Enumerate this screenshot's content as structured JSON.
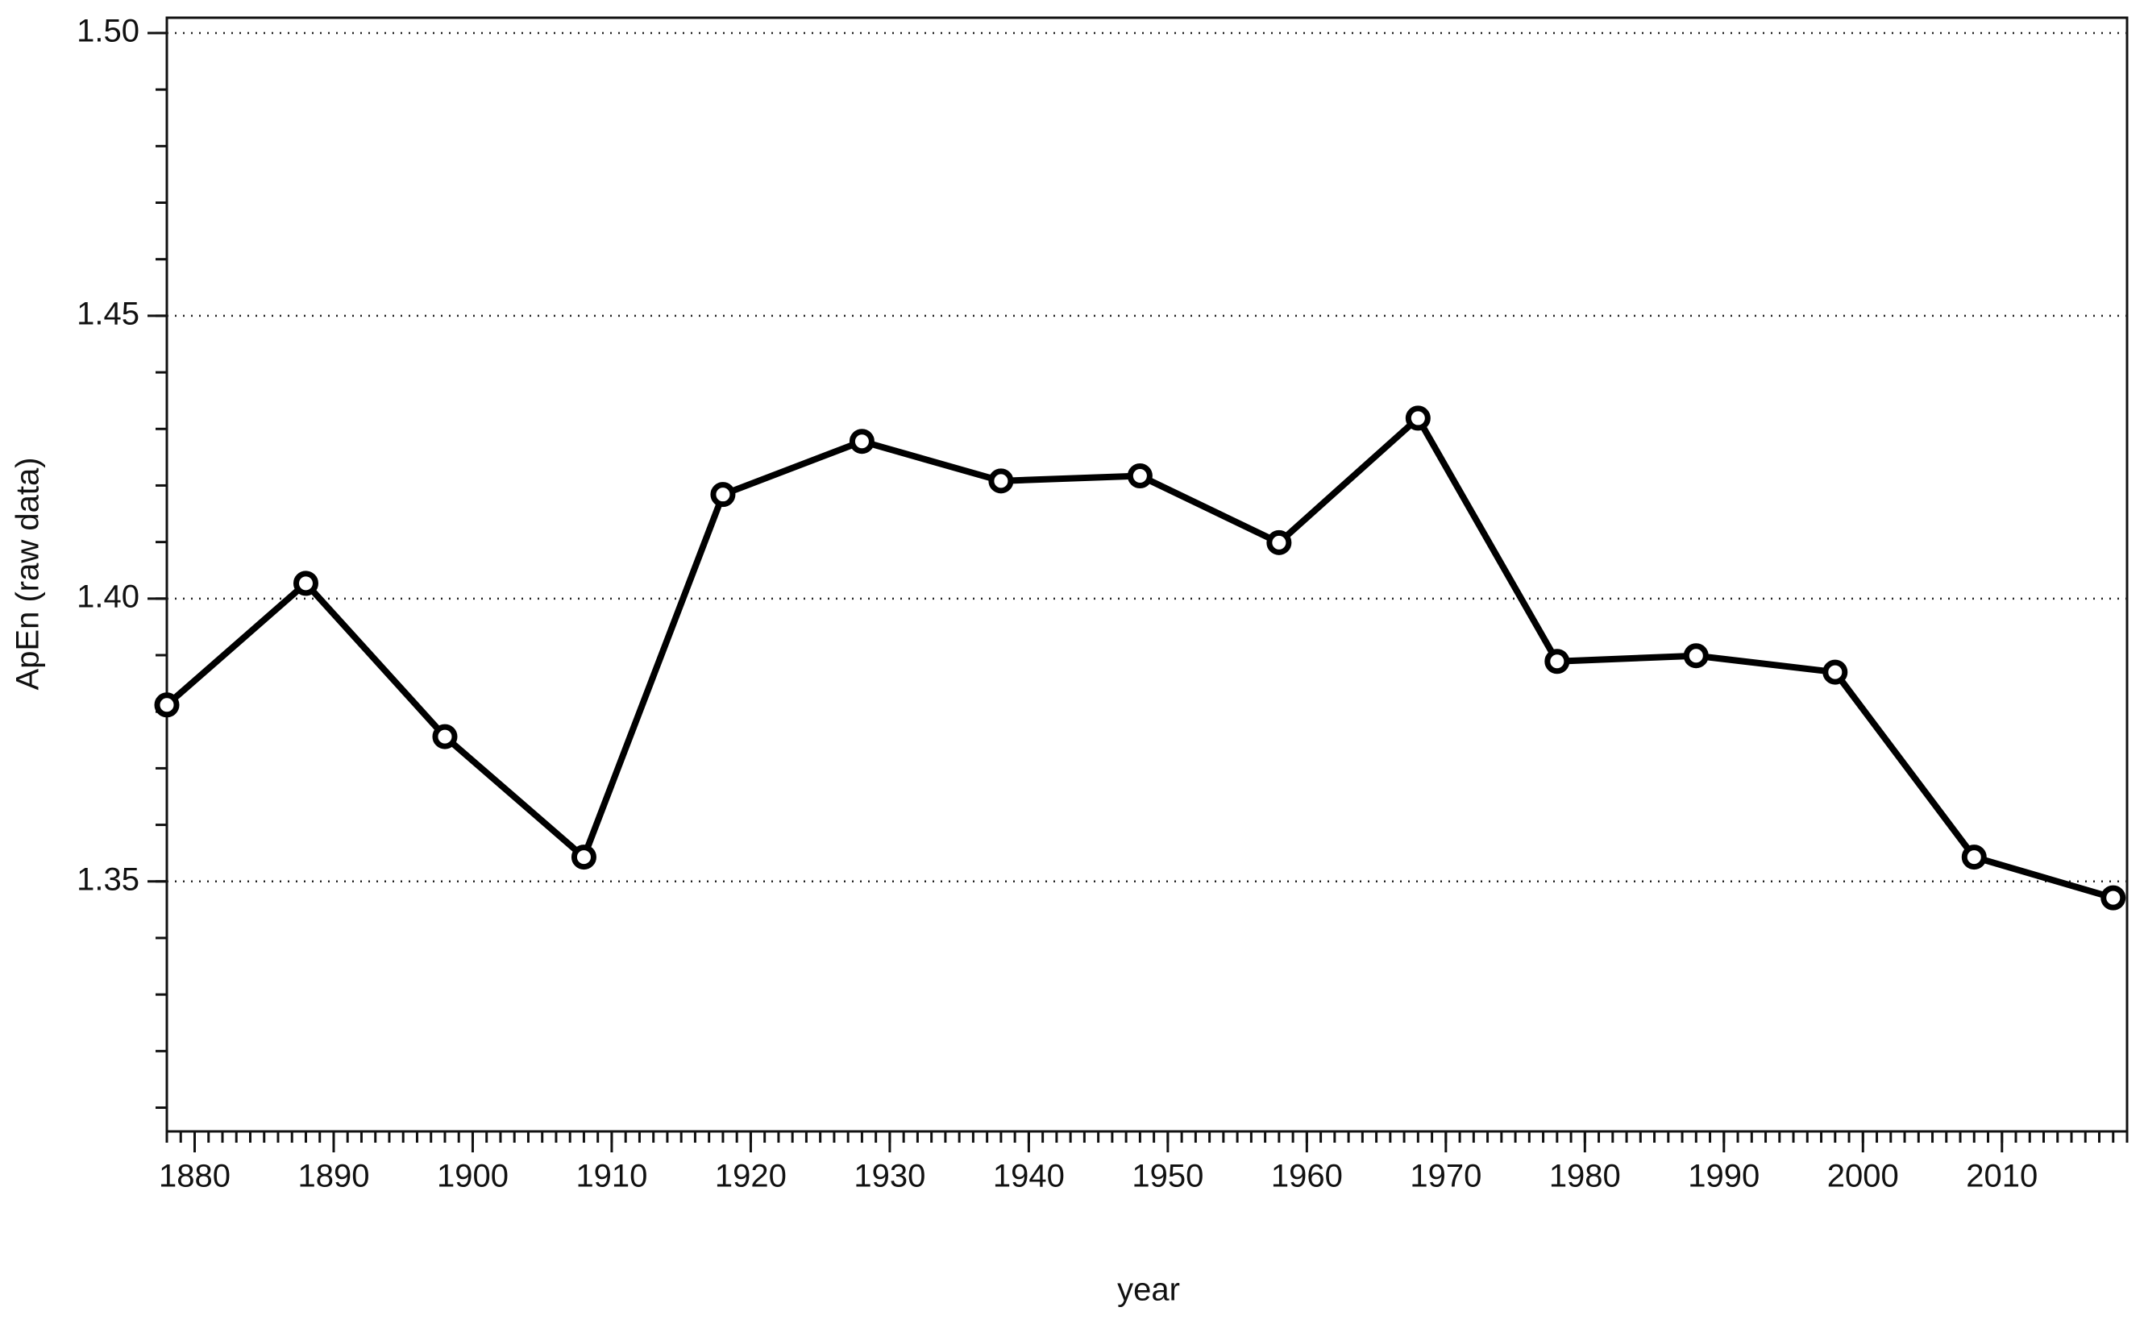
{
  "chart_data": {
    "type": "line",
    "xlabel": "year",
    "ylabel": "ApEn (raw data)",
    "x": [
      1878,
      1888,
      1898,
      1908,
      1918,
      1928,
      1938,
      1948,
      1958,
      1968,
      1978,
      1988,
      1998,
      2008,
      2018
    ],
    "series": [
      {
        "color": "#000000",
        "values": [
          1.3812,
          1.4027,
          1.3756,
          1.3543,
          1.4184,
          1.4278,
          1.4208,
          1.4217,
          1.4099,
          1.4319,
          1.3889,
          1.3899,
          1.387,
          1.3543,
          1.3471
        ]
      }
    ],
    "xlim": [
      1878,
      2019
    ],
    "xticks": [
      1880,
      1890,
      1900,
      1910,
      1920,
      1930,
      1940,
      1950,
      1960,
      1970,
      1980,
      1990,
      2000,
      2010
    ],
    "xminor": 1,
    "ylim": [
      1.3058,
      1.5027
    ],
    "yticks": [
      1.35,
      {
        "value": 1.4,
        "label": "1.40"
      },
      1.45,
      {
        "value": 1.5,
        "label": "1.50"
      }
    ],
    "yminor": 0.01,
    "grid": true
  }
}
